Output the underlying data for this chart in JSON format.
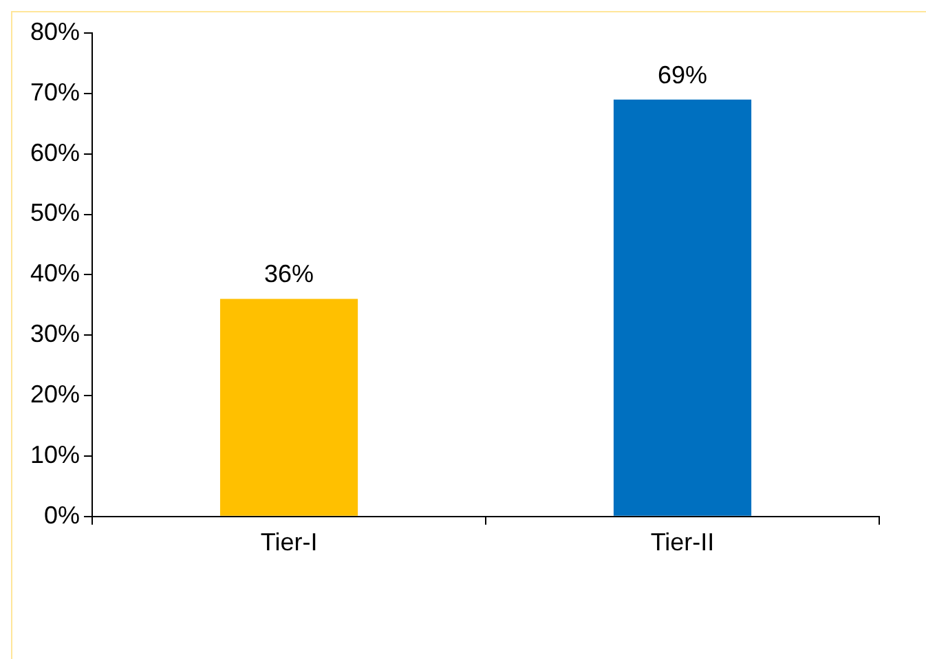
{
  "chart_data": {
    "type": "bar",
    "categories": [
      "Tier-I",
      "Tier-II"
    ],
    "values": [
      36,
      69
    ],
    "colors": [
      "#ffc000",
      "#0070c0"
    ],
    "value_labels": [
      "36%",
      "69%"
    ],
    "ylim": [
      0,
      80
    ],
    "yticks": [
      {
        "value": 0,
        "label": "0%"
      },
      {
        "value": 10,
        "label": "10%"
      },
      {
        "value": 20,
        "label": "20%"
      },
      {
        "value": 30,
        "label": "30%"
      },
      {
        "value": 40,
        "label": "40%"
      },
      {
        "value": 50,
        "label": "50%"
      },
      {
        "value": 60,
        "label": "60%"
      },
      {
        "value": 70,
        "label": "70%"
      },
      {
        "value": 80,
        "label": "80%"
      }
    ],
    "grid": false,
    "legend": false
  }
}
